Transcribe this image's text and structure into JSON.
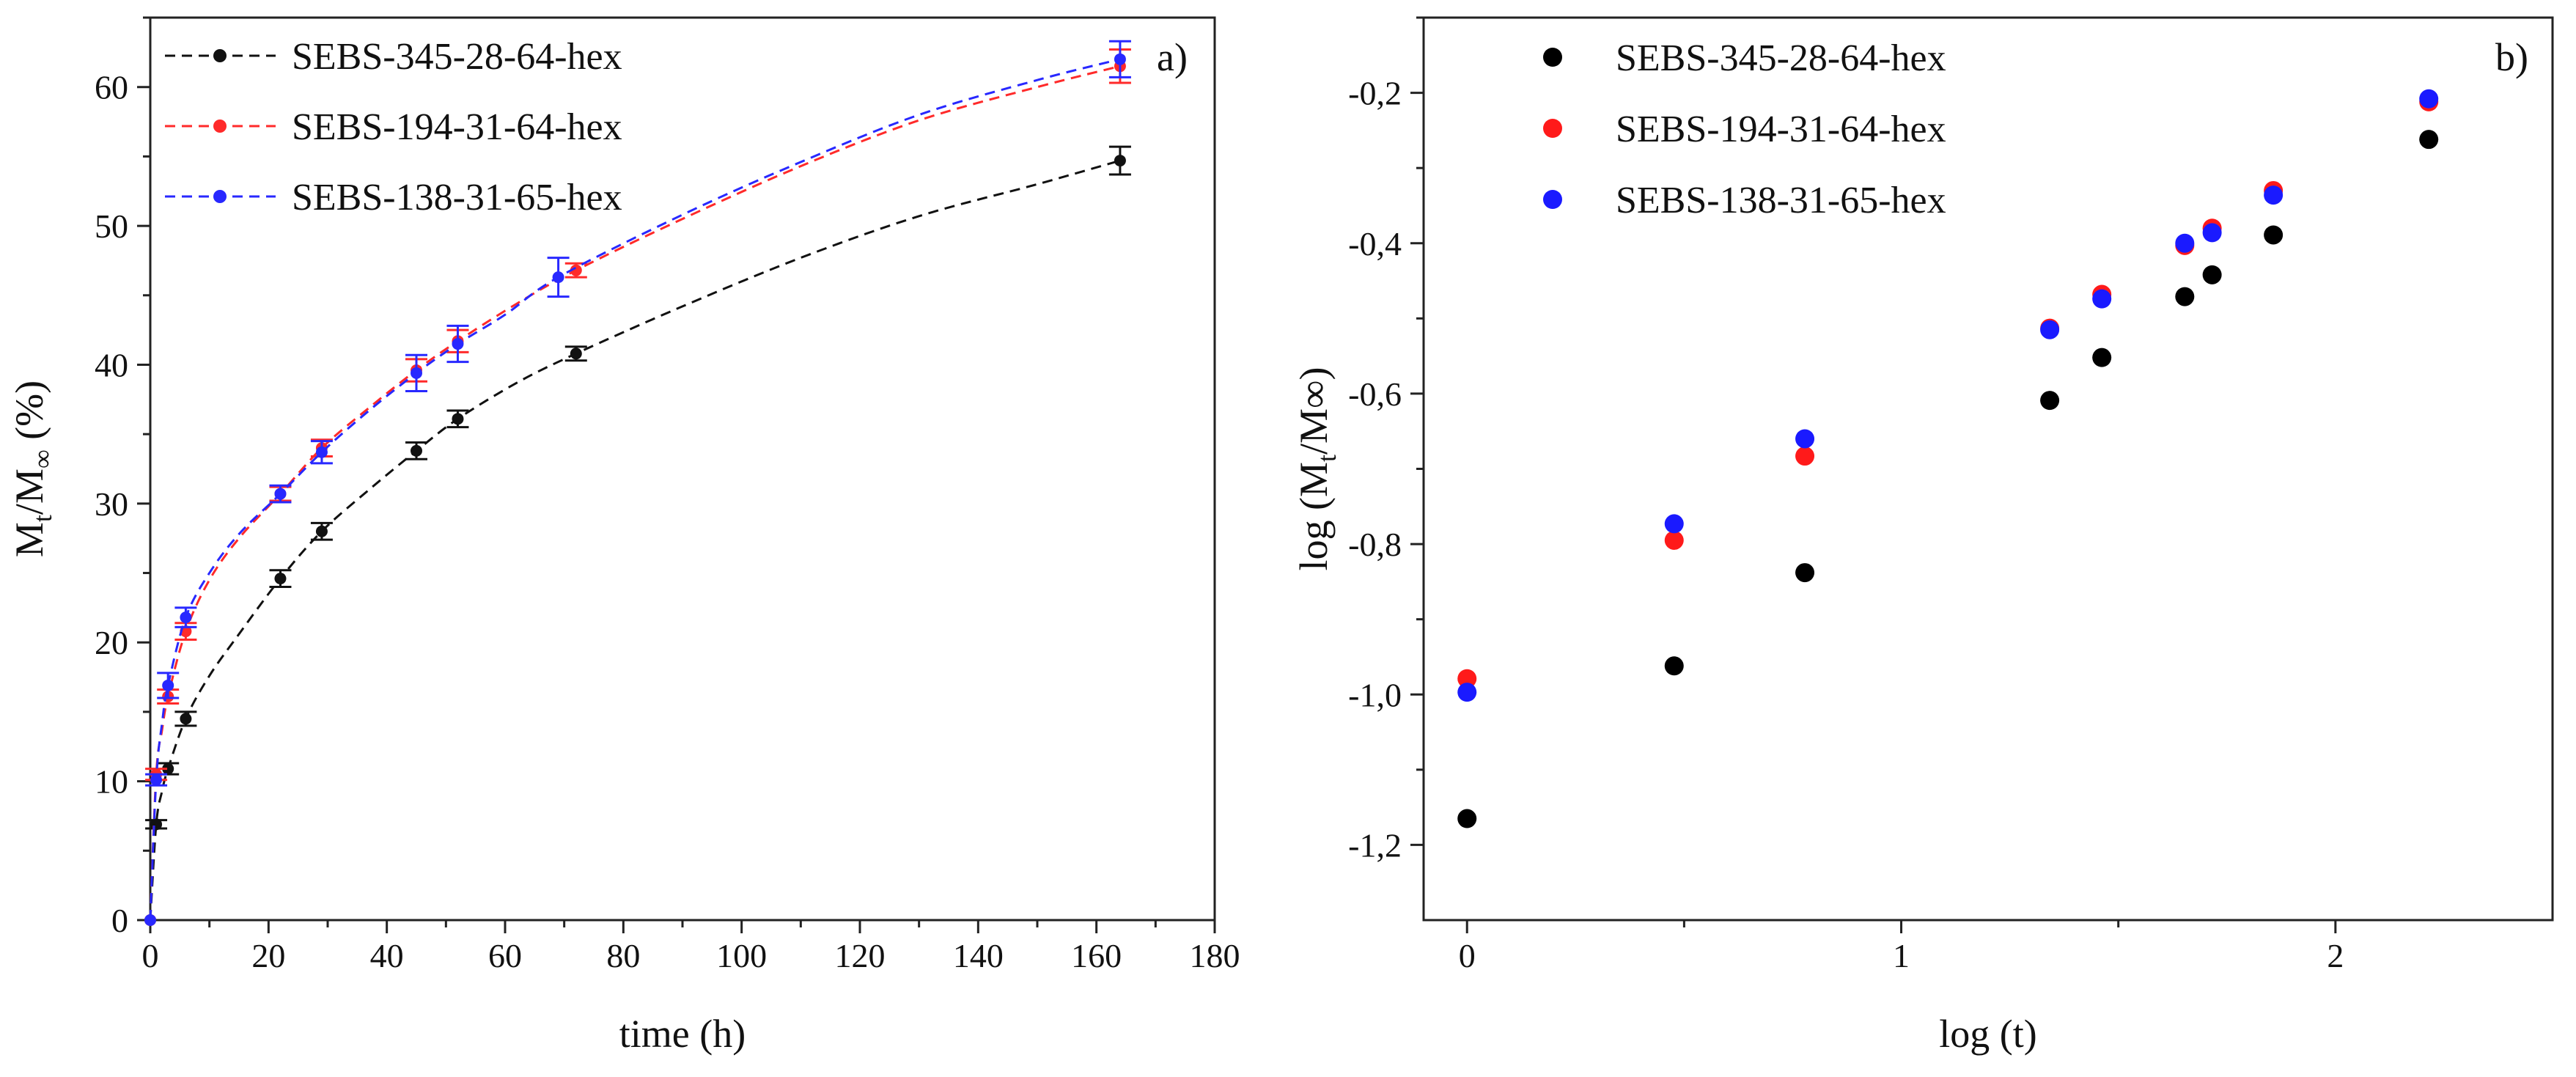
{
  "chart_data": [
    {
      "type": "line",
      "panel_label": "a)",
      "xlabel": "time (h)",
      "ylabel_parts": {
        "main": "M",
        "sub1": "t",
        "slash": "/M",
        "sub2": "∞",
        "unit": " (%)"
      },
      "xlim": [
        0,
        180
      ],
      "ylim": [
        0,
        65
      ],
      "xticks": [
        "0",
        "20",
        "40",
        "60",
        "80",
        "100",
        "120",
        "140",
        "160",
        "180"
      ],
      "yticks": [
        "0",
        "10",
        "20",
        "30",
        "40",
        "50",
        "60"
      ],
      "legend_position": "top-left",
      "series": [
        {
          "name": "SEBS-345-28-64-hex",
          "color": "#111111",
          "points": [
            {
              "x": 0,
              "y": 0,
              "err": 0
            },
            {
              "x": 1,
              "y": 6.9,
              "err": 0.3
            },
            {
              "x": 3,
              "y": 10.9,
              "err": 0.4
            },
            {
              "x": 6,
              "y": 14.5,
              "err": 0.5
            },
            {
              "x": 22,
              "y": 24.6,
              "err": 0.6
            },
            {
              "x": 29,
              "y": 28.0,
              "err": 0.6
            },
            {
              "x": 45,
              "y": 33.8,
              "err": 0.6
            },
            {
              "x": 52,
              "y": 36.1,
              "err": 0.6
            },
            {
              "x": 72,
              "y": 40.8,
              "err": 0.5
            },
            {
              "x": 164,
              "y": 54.7,
              "err": 1.0
            }
          ],
          "curve": [
            [
              0,
              0
            ],
            [
              1,
              6.9
            ],
            [
              2,
              9.3
            ],
            [
              3,
              10.9
            ],
            [
              6,
              14.5
            ],
            [
              10,
              17.6
            ],
            [
              15,
              20.6
            ],
            [
              22,
              24.6
            ],
            [
              29,
              28.0
            ],
            [
              37,
              31.0
            ],
            [
              45,
              33.8
            ],
            [
              52,
              36.1
            ],
            [
              62,
              38.7
            ],
            [
              72,
              40.8
            ],
            [
              90,
              44.2
            ],
            [
              110,
              47.7
            ],
            [
              130,
              50.7
            ],
            [
              150,
              53.0
            ],
            [
              164,
              54.7
            ]
          ]
        },
        {
          "name": "SEBS-194-31-64-hex",
          "color": "#ff2a2a",
          "points": [
            {
              "x": 0,
              "y": 0,
              "err": 0
            },
            {
              "x": 1,
              "y": 10.5,
              "err": 0.4
            },
            {
              "x": 3,
              "y": 16.1,
              "err": 0.5
            },
            {
              "x": 6,
              "y": 20.8,
              "err": 0.6
            },
            {
              "x": 22,
              "y": 30.7,
              "err": 0.5
            },
            {
              "x": 29,
              "y": 34.0,
              "err": 0.6
            },
            {
              "x": 45,
              "y": 39.6,
              "err": 0.8
            },
            {
              "x": 52,
              "y": 41.7,
              "err": 0.8
            },
            {
              "x": 72,
              "y": 46.8,
              "err": 0.5
            },
            {
              "x": 164,
              "y": 61.5,
              "err": 1.2
            }
          ],
          "curve": [
            [
              0,
              0
            ],
            [
              1,
              10.5
            ],
            [
              2,
              13.7
            ],
            [
              3,
              16.1
            ],
            [
              6,
              20.8
            ],
            [
              10,
              24.5
            ],
            [
              15,
              27.5
            ],
            [
              22,
              30.7
            ],
            [
              29,
              34.0
            ],
            [
              37,
              36.9
            ],
            [
              45,
              39.6
            ],
            [
              52,
              41.7
            ],
            [
              62,
              44.4
            ],
            [
              72,
              46.8
            ],
            [
              90,
              50.5
            ],
            [
              110,
              54.3
            ],
            [
              130,
              57.6
            ],
            [
              150,
              60.0
            ],
            [
              164,
              61.5
            ]
          ]
        },
        {
          "name": "SEBS-138-31-65-hex",
          "color": "#2828ff",
          "points": [
            {
              "x": 0,
              "y": 0,
              "err": 0
            },
            {
              "x": 1,
              "y": 10.1,
              "err": 0.4
            },
            {
              "x": 3,
              "y": 16.9,
              "err": 0.9
            },
            {
              "x": 6,
              "y": 21.8,
              "err": 0.7
            },
            {
              "x": 22,
              "y": 30.7,
              "err": 0.6
            },
            {
              "x": 29,
              "y": 33.7,
              "err": 0.8
            },
            {
              "x": 45,
              "y": 39.4,
              "err": 1.3
            },
            {
              "x": 52,
              "y": 41.5,
              "err": 1.3
            },
            {
              "x": 69,
              "y": 46.3,
              "err": 1.4
            },
            {
              "x": 164,
              "y": 62.0,
              "err": 1.3
            }
          ],
          "curve": [
            [
              0,
              0
            ],
            [
              1,
              10.1
            ],
            [
              2,
              14.2
            ],
            [
              3,
              16.9
            ],
            [
              6,
              21.8
            ],
            [
              10,
              25.0
            ],
            [
              15,
              27.8
            ],
            [
              22,
              30.7
            ],
            [
              29,
              33.7
            ],
            [
              37,
              36.7
            ],
            [
              45,
              39.4
            ],
            [
              52,
              41.5
            ],
            [
              60,
              43.6
            ],
            [
              69,
              46.3
            ],
            [
              90,
              50.8
            ],
            [
              110,
              54.6
            ],
            [
              130,
              58.0
            ],
            [
              150,
              60.5
            ],
            [
              164,
              62.0
            ]
          ]
        }
      ]
    },
    {
      "type": "scatter",
      "panel_label": "b)",
      "xlabel": "log (t)",
      "ylabel": "log (Mt/M∞)",
      "ylabel_parts": {
        "pre": "log (M",
        "sub1": "t",
        "slash": "/M",
        "inf": "∞",
        "post": ")"
      },
      "xlim": [
        -0.1,
        2.5
      ],
      "ylim": [
        -1.3,
        -0.1
      ],
      "xticks": [
        "0",
        "1",
        "2"
      ],
      "yticks": [
        "-1,2",
        "-1,0",
        "-0,8",
        "-0,6",
        "-0,4",
        "-0,2"
      ],
      "legend_position": "top-left",
      "series": [
        {
          "name": "SEBS-345-28-64-hex",
          "color": "#000000",
          "points": [
            [
              0.0,
              -1.165
            ],
            [
              0.477,
              -0.962
            ],
            [
              0.778,
              -0.838
            ],
            [
              1.342,
              -0.609
            ],
            [
              1.462,
              -0.552
            ],
            [
              1.653,
              -0.471
            ],
            [
              1.716,
              -0.442
            ],
            [
              1.857,
              -0.389
            ],
            [
              2.215,
              -0.262
            ]
          ]
        },
        {
          "name": "SEBS-194-31-64-hex",
          "color": "#ff1a1a",
          "points": [
            [
              0.0,
              -0.979
            ],
            [
              0.477,
              -0.795
            ],
            [
              0.778,
              -0.683
            ],
            [
              1.342,
              -0.513
            ],
            [
              1.462,
              -0.468
            ],
            [
              1.653,
              -0.403
            ],
            [
              1.716,
              -0.38
            ],
            [
              1.857,
              -0.33
            ],
            [
              2.215,
              -0.212
            ]
          ]
        },
        {
          "name": "SEBS-138-31-65-hex",
          "color": "#1a1aff",
          "points": [
            [
              0.0,
              -0.997
            ],
            [
              0.477,
              -0.773
            ],
            [
              0.778,
              -0.66
            ],
            [
              1.342,
              -0.515
            ],
            [
              1.462,
              -0.474
            ],
            [
              1.653,
              -0.4
            ],
            [
              1.716,
              -0.386
            ],
            [
              1.857,
              -0.336
            ],
            [
              2.215,
              -0.208
            ]
          ]
        }
      ]
    }
  ]
}
